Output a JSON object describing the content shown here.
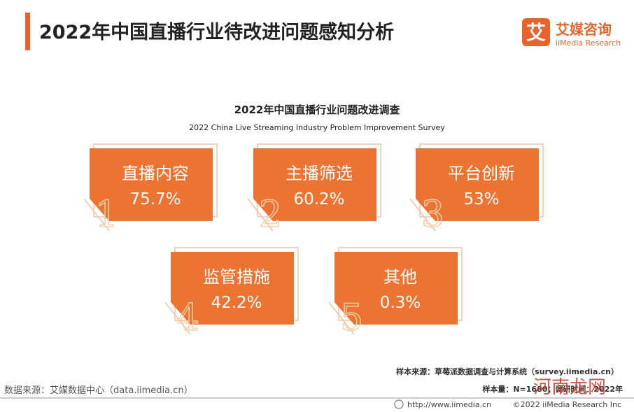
{
  "header": {
    "title": "2022年中国直播行业待改进问题感知分析",
    "logo_cn": "艾媒咨询",
    "logo_en": "iiMedia Research",
    "logo_icon": "艾"
  },
  "survey": {
    "title_cn": "2022年中国直播行业问题改进调查",
    "title_en": "2022 China Live Streaming Industry Problem Improvement Survey",
    "items": [
      {
        "rank": "1",
        "label": "直播内容",
        "value": "75.7%"
      },
      {
        "rank": "2",
        "label": "主播筛选",
        "value": "60.2%"
      },
      {
        "rank": "3",
        "label": "平台创新",
        "value": "53%"
      },
      {
        "rank": "4",
        "label": "监管措施",
        "value": "42.2%"
      },
      {
        "rank": "5",
        "label": "其他",
        "value": "0.3%"
      }
    ]
  },
  "footer": {
    "data_source": "数据来源：艾媒数据中心（data.iimedia.cn）",
    "sample_source": "样本来源：草莓派数据调查与计算系统（survey.iimedia.cn）",
    "sample_size": "样本量：N=1680；调研时间：2022年",
    "url": "http://www.iimedia.cn",
    "copyright": "©2022  iiMedia Research  Inc",
    "watermark": "河南龙网"
  }
}
